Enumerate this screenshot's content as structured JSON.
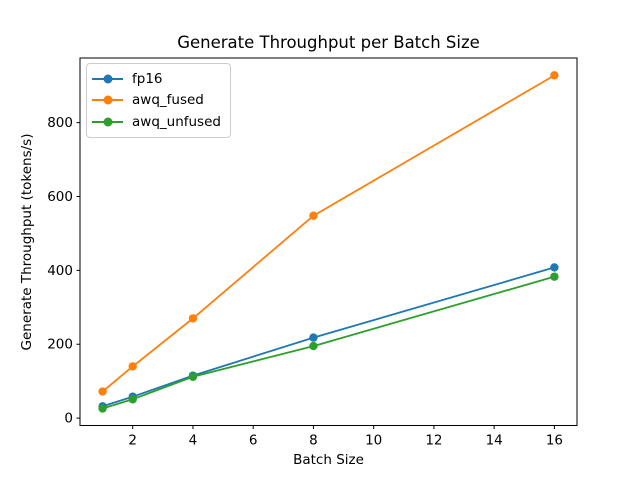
{
  "figure": {
    "background": "#ffffff"
  },
  "chart_data": {
    "type": "line",
    "title": "Generate Throughput per Batch Size",
    "xlabel": "Batch Size",
    "ylabel": "Generate Throughput (tokens/s)",
    "x": [
      1,
      2,
      4,
      8,
      16
    ],
    "series": [
      {
        "name": "fp16",
        "color": "#1f77b4",
        "marker": "o",
        "values": [
          32,
          58,
          115,
          218,
          408
        ]
      },
      {
        "name": "awq_fused",
        "color": "#ff7f0e",
        "marker": "o",
        "values": [
          72,
          140,
          270,
          548,
          928
        ]
      },
      {
        "name": "awq_unfused",
        "color": "#2ca02c",
        "marker": "o",
        "values": [
          26,
          51,
          112,
          195,
          383
        ]
      }
    ],
    "xticks": [
      2,
      4,
      6,
      8,
      10,
      12,
      14,
      16
    ],
    "yticks": [
      0,
      200,
      400,
      600,
      800
    ],
    "xlim": [
      0.25,
      16.75
    ],
    "ylim": [
      -20,
      975
    ],
    "grid": false,
    "legend": {
      "position": "upper-left",
      "entries": [
        "fp16",
        "awq_fused",
        "awq_unfused"
      ]
    },
    "axis_color": "#000000",
    "text_color": "#000000"
  }
}
